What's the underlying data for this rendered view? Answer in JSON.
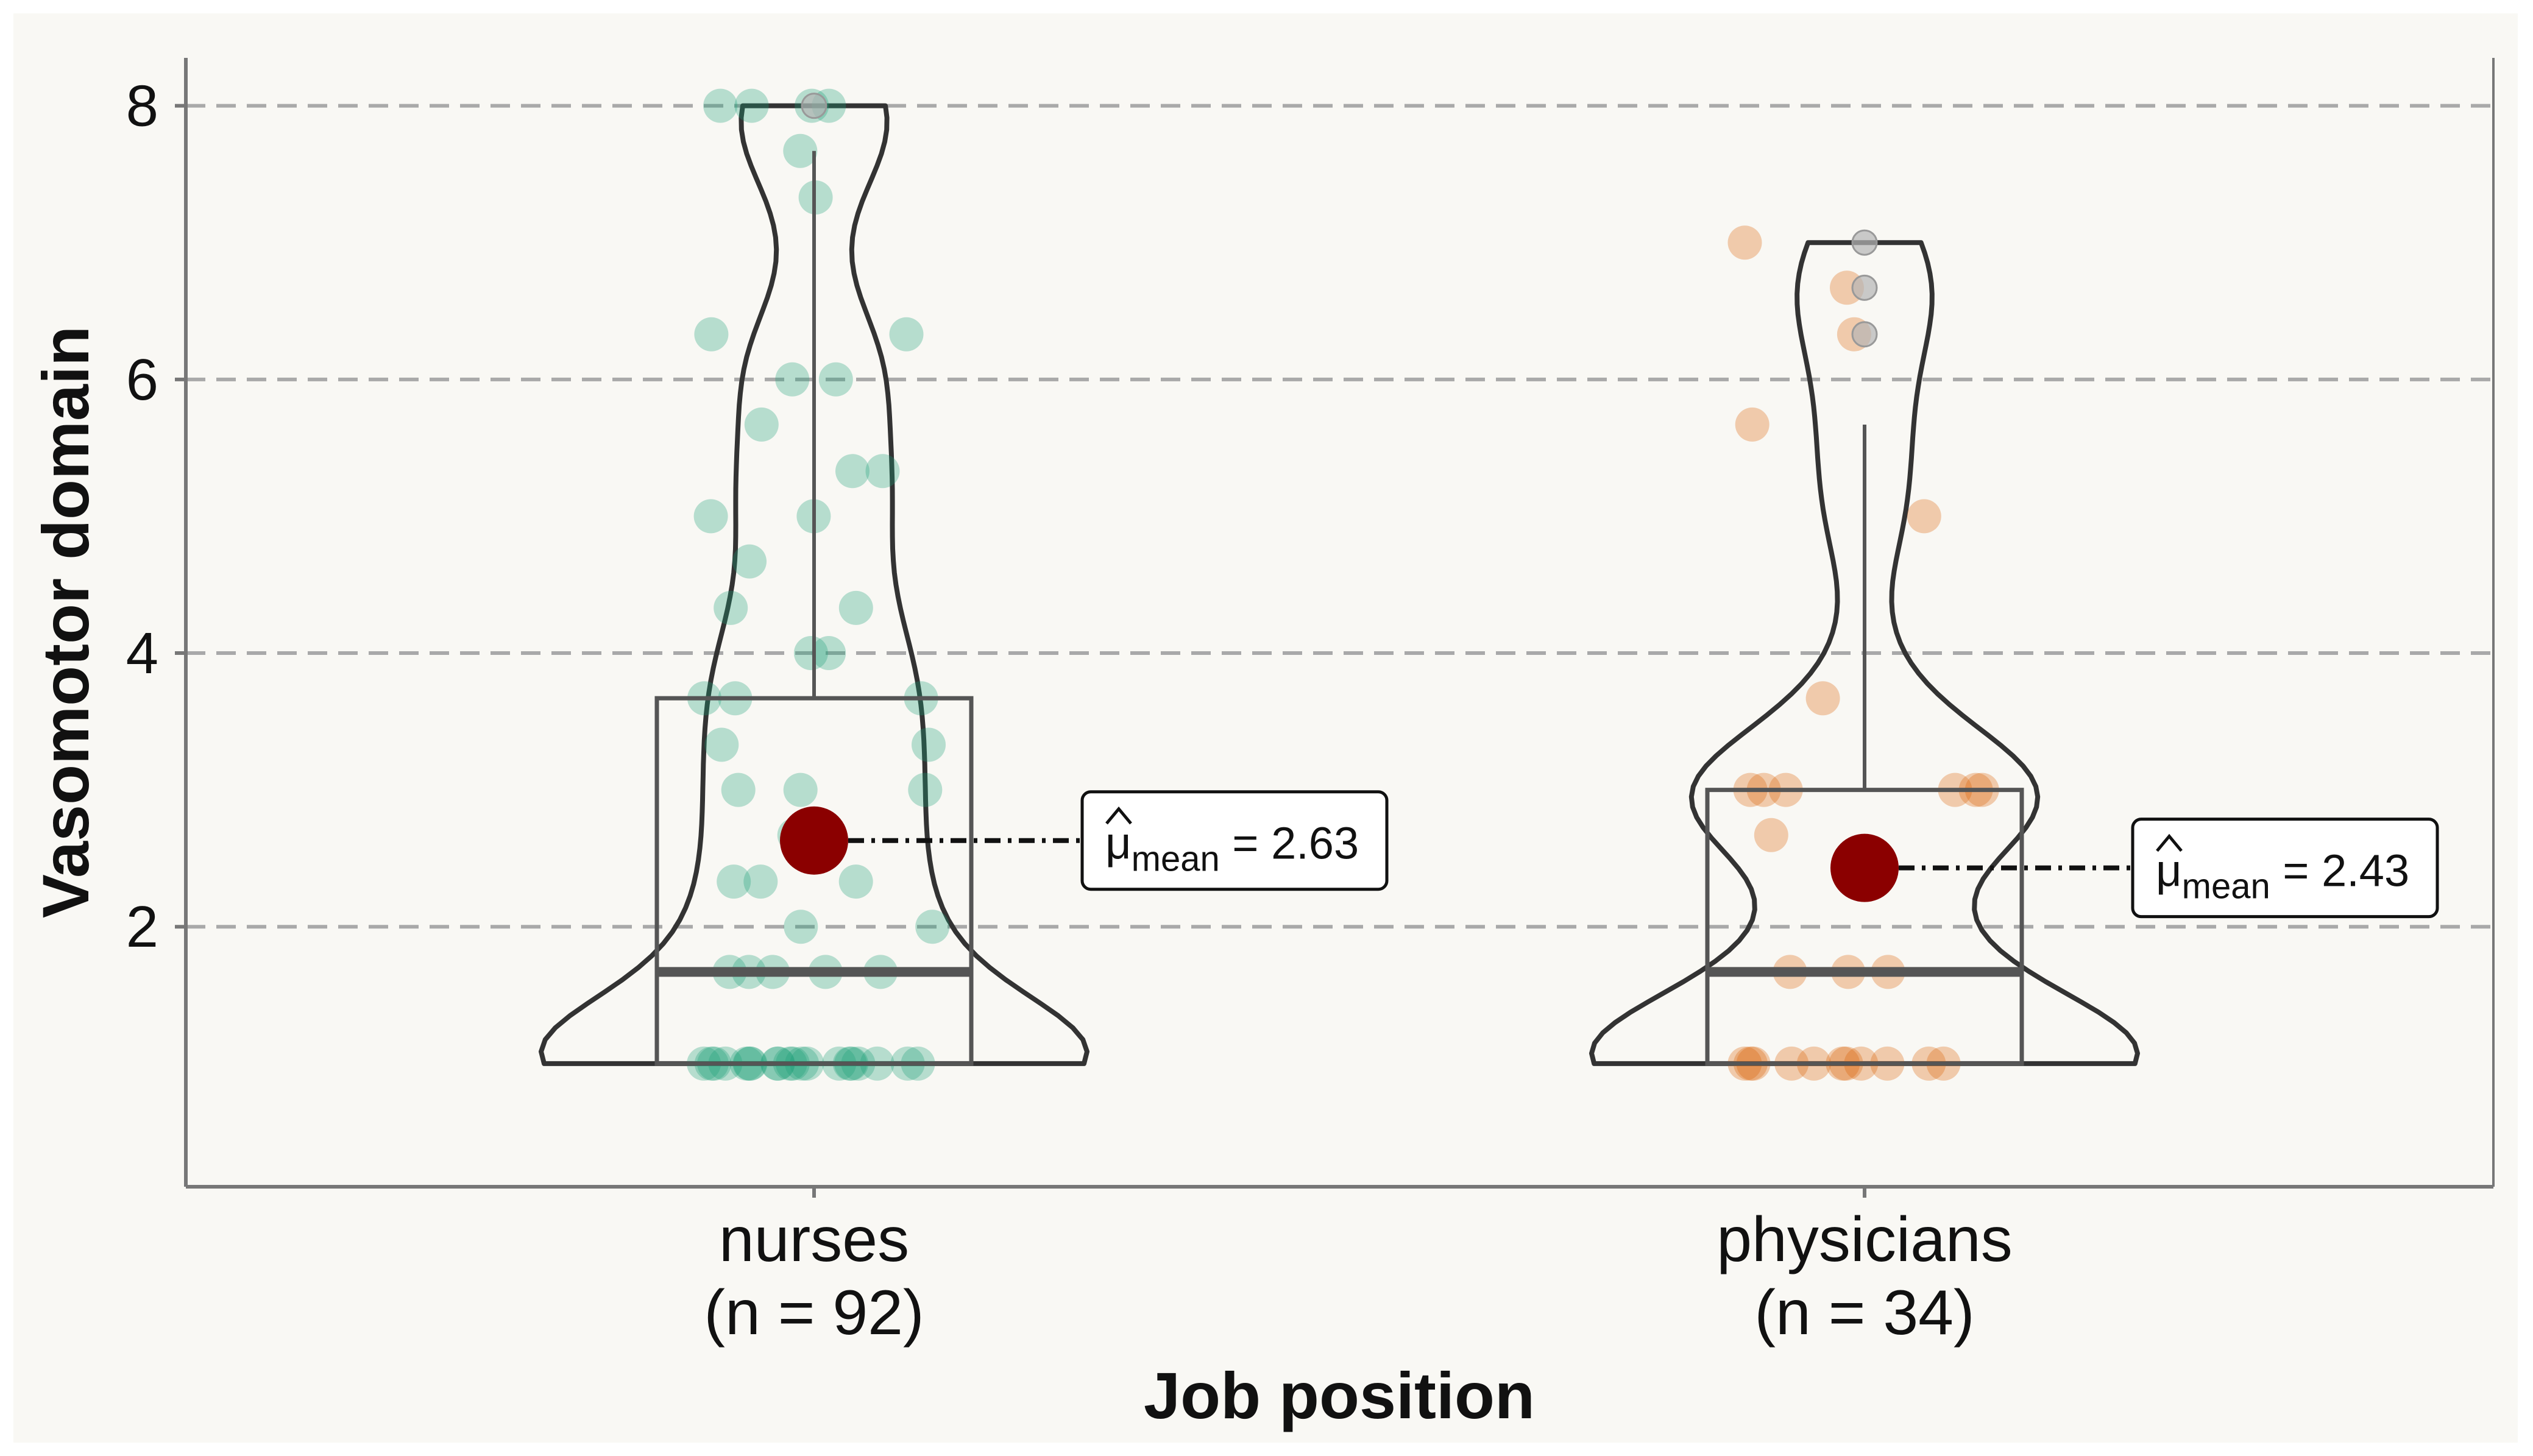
{
  "chart_data": {
    "type": "violin",
    "xlabel": "Job position",
    "ylabel": "Vasomotor domain",
    "ylim": [
      0.1,
      8.35
    ],
    "yticks": [
      2,
      4,
      6,
      8
    ],
    "grid": "horizontal dashed",
    "groups": [
      {
        "category": "nurses",
        "n_label": "(n = 92)",
        "color": "#1b9e77",
        "min": 1,
        "q1": 1,
        "median": 1.67,
        "q3": 3.67,
        "whisker_high": 7.67,
        "max": 8,
        "mean": 2.63,
        "mean_label": "= 2.63",
        "outliers": [
          8
        ],
        "points": [
          8,
          8,
          8,
          8,
          7.67,
          7.33,
          6.33,
          6.33,
          6,
          6,
          5.67,
          5.33,
          5.33,
          5,
          5,
          4.67,
          4.33,
          4.33,
          4,
          4,
          3.67,
          3.67,
          3.67,
          3.33,
          3.33,
          3,
          3,
          3,
          2.67,
          2.67,
          2.33,
          2.33,
          2.33,
          2,
          2,
          1.67,
          1.67,
          1.67,
          1.67,
          1.67,
          1,
          1,
          1,
          1,
          1,
          1,
          1,
          1,
          1,
          1,
          1,
          1,
          1,
          1,
          1,
          1,
          1,
          1,
          1,
          1
        ]
      },
      {
        "category": "physicians",
        "n_label": "(n = 34)",
        "color": "#d95f02",
        "min": 1,
        "q1": 1,
        "median": 1.67,
        "q3": 3,
        "whisker_high": 5.67,
        "max": 7,
        "mean": 2.43,
        "mean_label": "= 2.43",
        "outliers": [
          7,
          6.67,
          6.33
        ],
        "points": [
          7,
          6.67,
          6.33,
          5.67,
          5,
          3.67,
          3,
          3,
          3,
          3,
          3,
          3,
          2.67,
          2.33,
          1.67,
          1.67,
          1.67,
          1,
          1,
          1,
          1,
          1,
          1,
          1,
          1,
          1,
          1,
          1
        ]
      }
    ],
    "mean_symbol": "μ",
    "mean_subscript": "mean",
    "colors": {
      "background": "#f9f8f4",
      "mean_point": "#8b0000",
      "grid": "#a9a9a9",
      "outline": "#333333"
    }
  }
}
